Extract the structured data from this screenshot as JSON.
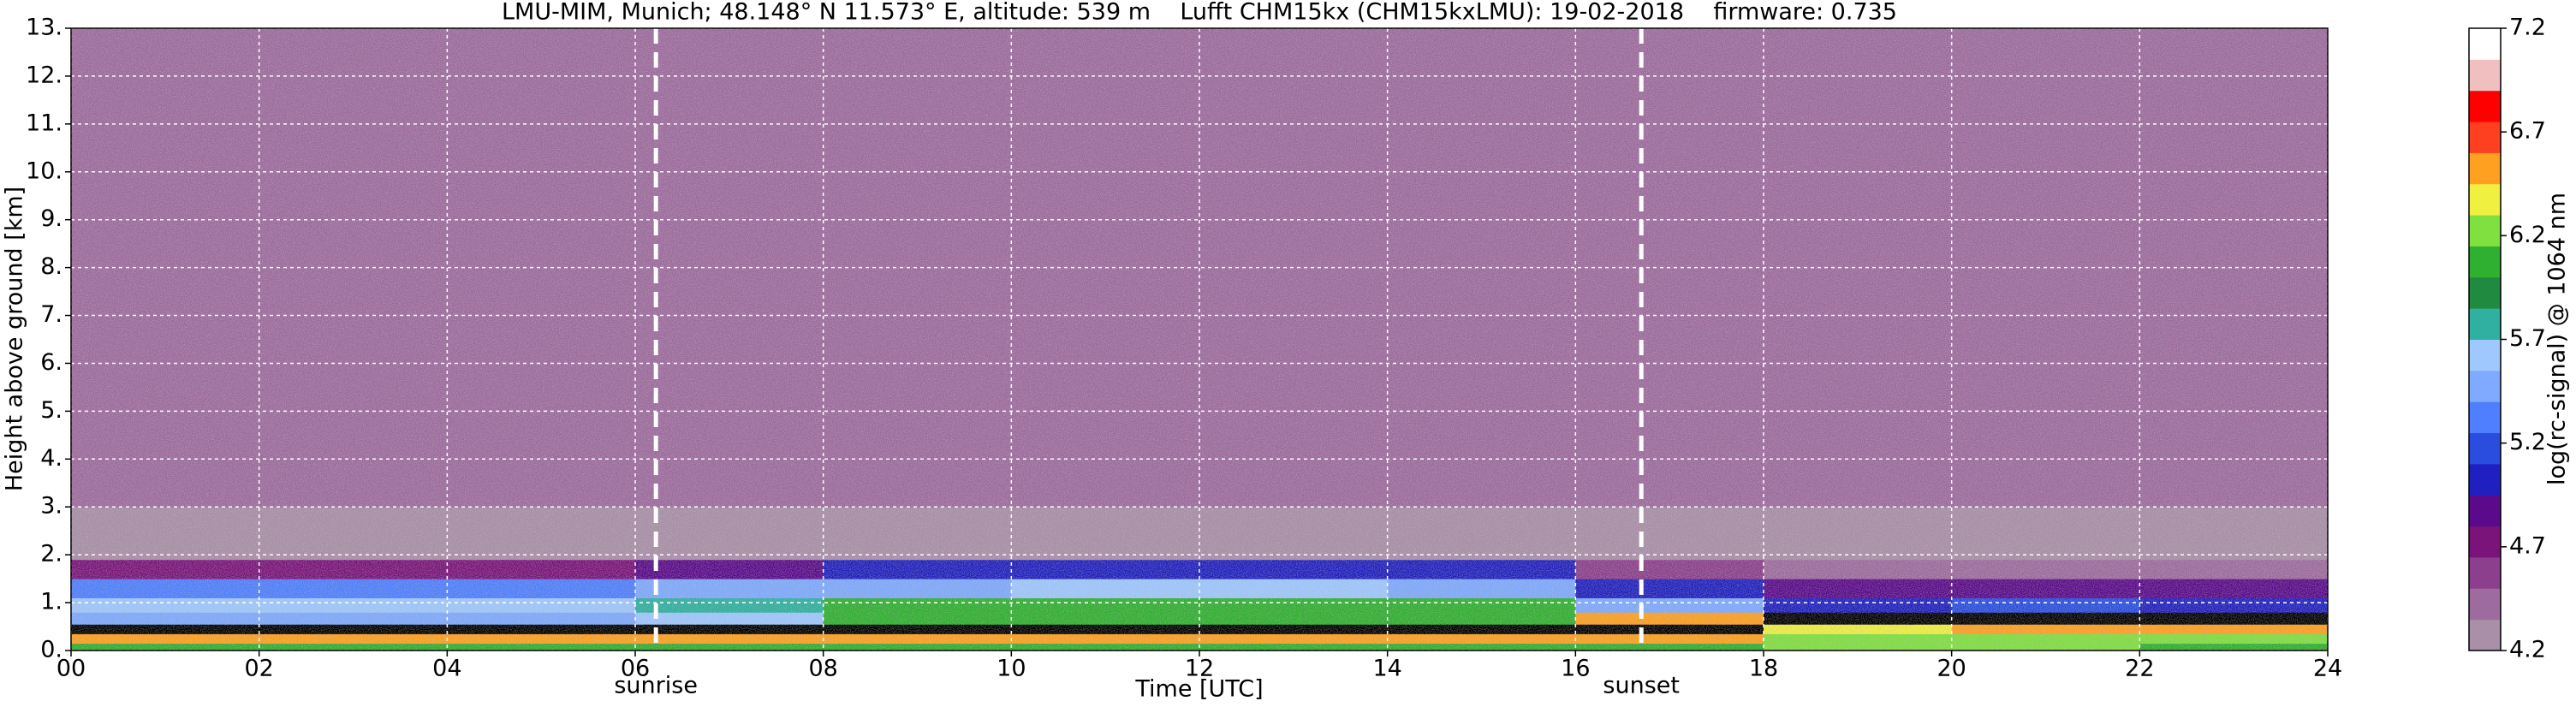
{
  "chart_data": {
    "type": "heatmap",
    "title": "LMU-MIM, Munich; 48.148° N 11.573° E, altitude: 539 m    Lufft CHM15kx (CHM15kxLMU): 19-02-2018    firmware: 0.735",
    "xlabel": "Time [UTC]",
    "ylabel": "Height above ground [km]",
    "colorbar_label": "log(rc-signal) @ 1064 nm",
    "x_edges": [
      0,
      2,
      4,
      6,
      8,
      10,
      12,
      14,
      16,
      18,
      20,
      22,
      24
    ],
    "y_edges": [
      0,
      0.15,
      0.35,
      0.55,
      0.8,
      1.1,
      1.5,
      1.9,
      3,
      13
    ],
    "z": [
      [
        6.0,
        6.0,
        6.0,
        6.1,
        6.1,
        6.1,
        6.1,
        6.1,
        6.0,
        6.2,
        6.2,
        6.1
      ],
      [
        6.6,
        6.6,
        6.6,
        6.6,
        6.6,
        6.6,
        6.6,
        6.6,
        6.5,
        6.3,
        6.3,
        6.3
      ],
      [
        7.4,
        7.4,
        7.4,
        7.4,
        7.4,
        7.4,
        7.4,
        7.4,
        7.4,
        6.4,
        6.6,
        6.5
      ],
      [
        5.5,
        5.5,
        5.5,
        5.6,
        6.1,
        6.1,
        6.1,
        6.0,
        6.6,
        7.4,
        7.4,
        7.4
      ],
      [
        5.6,
        5.6,
        5.6,
        5.7,
        6.0,
        6.1,
        6.1,
        6.0,
        5.5,
        5.1,
        5.2,
        5.1
      ],
      [
        5.3,
        5.3,
        5.3,
        5.4,
        5.5,
        5.6,
        5.6,
        5.5,
        5.0,
        4.9,
        4.9,
        4.9
      ],
      [
        4.8,
        4.8,
        4.8,
        4.9,
        5.0,
        5.0,
        5.1,
        5.0,
        4.6,
        4.5,
        4.5,
        4.5
      ],
      [
        4.3,
        4.3,
        4.3,
        4.3,
        4.3,
        4.3,
        4.3,
        4.3,
        4.3,
        4.3,
        4.3,
        4.3
      ],
      [
        4.5,
        4.5,
        4.5,
        4.5,
        4.5,
        4.5,
        4.5,
        4.5,
        4.5,
        4.5,
        4.5,
        4.5
      ]
    ],
    "xlim": [
      0,
      24
    ],
    "ylim": [
      0,
      13
    ],
    "xticks": [
      {
        "value": 0,
        "label": "00"
      },
      {
        "value": 2,
        "label": "02"
      },
      {
        "value": 4,
        "label": "04"
      },
      {
        "value": 6,
        "label": "06"
      },
      {
        "value": 8,
        "label": "08"
      },
      10,
      12,
      14,
      16,
      18,
      20,
      22,
      24
    ],
    "yticks": [
      {
        "value": 0,
        "label": "0."
      },
      {
        "value": 1,
        "label": "1."
      },
      {
        "value": 2,
        "label": "2."
      },
      {
        "value": 3,
        "label": "3."
      },
      {
        "value": 4,
        "label": "4."
      },
      {
        "value": 5,
        "label": "5."
      },
      {
        "value": 6,
        "label": "6."
      },
      {
        "value": 7,
        "label": "7."
      },
      {
        "value": 8,
        "label": "8."
      },
      {
        "value": 9,
        "label": "9."
      },
      {
        "value": 10,
        "label": "10."
      },
      {
        "value": 11,
        "label": "11."
      },
      {
        "value": 12,
        "label": "12."
      },
      {
        "value": 13,
        "label": "13."
      }
    ],
    "clim": [
      4.2,
      7.2
    ],
    "cticks": [
      4.2,
      4.7,
      5.2,
      5.7,
      6.2,
      6.7,
      7.2
    ],
    "colormap": [
      "#a98fa8",
      "#9e6b9e",
      "#8c3f8c",
      "#7a137a",
      "#5a0a8a",
      "#2020c0",
      "#2a4de0",
      "#4f7fff",
      "#7faaff",
      "#9fc8ff",
      "#30b0a0",
      "#208a40",
      "#30b030",
      "#80e040",
      "#f0f040",
      "#ffa020",
      "#ff4020",
      "#ff0000",
      "#f0c0c0",
      "#ffffff"
    ],
    "over_color": "#000000",
    "grid": true,
    "grid_color": "#ffffff",
    "annotations": [
      {
        "label": "sunrise",
        "x": 6.22
      },
      {
        "label": "sunset",
        "x": 16.7
      }
    ]
  }
}
